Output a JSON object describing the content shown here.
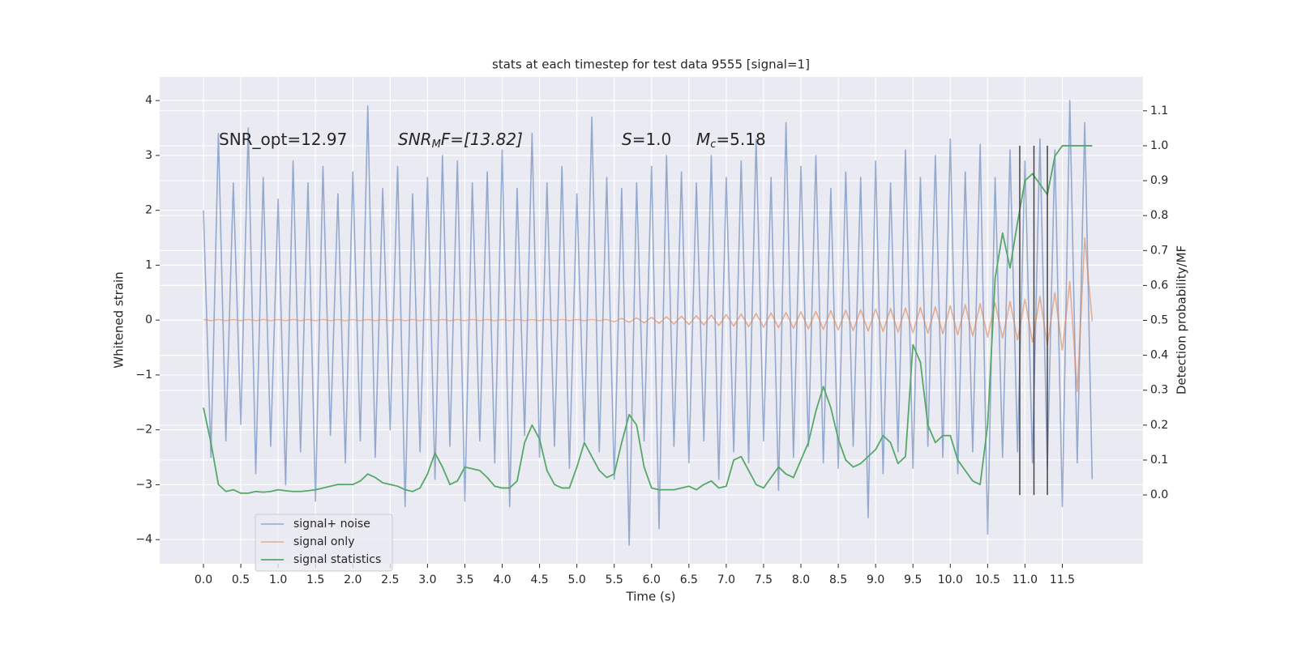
{
  "chart_data": {
    "type": "line",
    "title": "stats at each timestep for test data 9555 [signal=1]",
    "xlabel": "Time (s)",
    "ylabel": "Whitened strain",
    "y2label": "Detection probability/MF",
    "annotations": [
      [
        "SNR_opt=12.97"
      ],
      [
        "SNR",
        "M",
        "F=[13.82]"
      ],
      [
        "S",
        "=1.0"
      ],
      [
        "M",
        "c",
        "=5.18"
      ]
    ],
    "xlim": [
      -0.586,
      12.58
    ],
    "ylim": [
      -4.44,
      4.43
    ],
    "y2lim": [
      -0.197,
      1.197
    ],
    "xticks": [
      {
        "value": 0,
        "label": "0.0"
      },
      0.5,
      {
        "value": 1,
        "label": "1.0"
      },
      1.5,
      {
        "value": 2,
        "label": "2.0"
      },
      2.5,
      {
        "value": 3,
        "label": "3.0"
      },
      3.5,
      {
        "value": 4,
        "label": "4.0"
      },
      4.5,
      {
        "value": 5,
        "label": "5.0"
      },
      5.5,
      {
        "value": 6,
        "label": "6.0"
      },
      6.5,
      {
        "value": 7,
        "label": "7.0"
      },
      7.5,
      {
        "value": 8,
        "label": "8.0"
      },
      8.5,
      {
        "value": 9,
        "label": "9.0"
      },
      9.5,
      {
        "value": 10,
        "label": "10.0"
      },
      10.5,
      {
        "value": 11,
        "label": "11.0"
      },
      11.5
    ],
    "yticks": [
      {
        "value": -4,
        "label": "−4"
      },
      {
        "value": -3,
        "label": "−3"
      },
      {
        "value": -2,
        "label": "−2"
      },
      {
        "value": -1,
        "label": "−1"
      },
      0,
      1,
      2,
      3,
      4
    ],
    "y2ticks": [
      {
        "value": 0,
        "label": "0.0"
      },
      0.1,
      0.2,
      0.3,
      0.4,
      0.5,
      0.6,
      0.7,
      0.8,
      0.9,
      {
        "value": 1,
        "label": "1.0"
      },
      1.1
    ],
    "grid": true,
    "legend": "lower left",
    "x": [
      0,
      0.1,
      0.2,
      0.3,
      0.4,
      0.5,
      0.6,
      0.7,
      0.8,
      0.9,
      1,
      1.1,
      1.2,
      1.3,
      1.4,
      1.5,
      1.6,
      1.7,
      1.8,
      1.9,
      2,
      2.1,
      2.2,
      2.3,
      2.4,
      2.5,
      2.6,
      2.7,
      2.8,
      2.9,
      3,
      3.1,
      3.2,
      3.3,
      3.4,
      3.5,
      3.6,
      3.7,
      3.8,
      3.9,
      4,
      4.1,
      4.2,
      4.3,
      4.4,
      4.5,
      4.6,
      4.7,
      4.8,
      4.9,
      5,
      5.1,
      5.2,
      5.3,
      5.4,
      5.5,
      5.6,
      5.7,
      5.8,
      5.9,
      6,
      6.1,
      6.2,
      6.3,
      6.4,
      6.5,
      6.6,
      6.7,
      6.8,
      6.9,
      7,
      7.1,
      7.2,
      7.3,
      7.4,
      7.5,
      7.6,
      7.7,
      7.8,
      7.9,
      8,
      8.1,
      8.2,
      8.3,
      8.4,
      8.5,
      8.6,
      8.7,
      8.8,
      8.9,
      9,
      9.1,
      9.2,
      9.3,
      9.4,
      9.5,
      9.6,
      9.7,
      9.8,
      9.9,
      10,
      10.1,
      10.2,
      10.3,
      10.4,
      10.5,
      10.6,
      10.7,
      10.8,
      10.9,
      11,
      11.1,
      11.2,
      11.3,
      11.4,
      11.5,
      11.6,
      11.7,
      11.8,
      11.9
    ],
    "series": [
      {
        "name": "signal+ noise",
        "color": "#4c72b0",
        "values": [
          2.0,
          -2.5,
          3.4,
          -2.2,
          2.5,
          -1.9,
          3.5,
          -2.8,
          2.6,
          -2.3,
          2.2,
          -3.0,
          2.9,
          -2.4,
          2.5,
          -3.3,
          2.8,
          -2.1,
          2.3,
          -2.6,
          2.7,
          -2.2,
          3.9,
          -2.5,
          2.4,
          -2.0,
          2.8,
          -3.4,
          2.3,
          -2.4,
          2.6,
          -2.9,
          3.0,
          -2.3,
          2.9,
          -3.3,
          2.5,
          -2.2,
          2.7,
          -2.6,
          3.1,
          -3.4,
          2.4,
          -2.1,
          3.4,
          -2.5,
          2.5,
          -2.3,
          2.8,
          -2.7,
          2.3,
          -2.2,
          3.7,
          -2.4,
          2.6,
          -2.9,
          2.4,
          -4.1,
          2.5,
          -2.2,
          2.8,
          -3.8,
          3.0,
          -2.3,
          2.7,
          -2.6,
          2.5,
          -2.2,
          3.0,
          -2.9,
          2.6,
          -2.4,
          2.9,
          -2.6,
          3.3,
          -2.2,
          2.6,
          -3.1,
          3.6,
          -2.5,
          2.8,
          -2.3,
          3.0,
          -2.6,
          2.4,
          -2.7,
          2.7,
          -2.3,
          2.6,
          -3.6,
          2.9,
          -2.8,
          2.5,
          -2.4,
          3.1,
          -2.7,
          2.6,
          -2.3,
          3.0,
          -2.5,
          3.3,
          -2.8,
          2.7,
          -2.4,
          3.2,
          -3.9,
          2.6,
          -2.5,
          3.1,
          -2.4,
          2.9,
          -2.6,
          3.3,
          -2.7,
          3.1,
          -3.4,
          4.0,
          -2.6,
          3.6,
          -2.9
        ]
      },
      {
        "name": "signal only",
        "color": "#dd8452",
        "values": [
          0.01,
          -0.01,
          0.01,
          -0.01,
          0.01,
          -0.01,
          0.01,
          -0.01,
          0.01,
          -0.01,
          0.01,
          -0.01,
          0.01,
          -0.01,
          0.01,
          -0.01,
          0.01,
          -0.01,
          0.01,
          -0.01,
          0.01,
          -0.01,
          0.01,
          -0.01,
          0.01,
          -0.01,
          0.01,
          -0.01,
          0.01,
          -0.01,
          0.01,
          -0.01,
          0.01,
          -0.01,
          0.01,
          -0.01,
          0.01,
          -0.01,
          0.01,
          -0.01,
          0.01,
          -0.01,
          0.01,
          -0.01,
          0.01,
          -0.01,
          0.01,
          -0.01,
          0.01,
          -0.01,
          0.01,
          -0.01,
          0.01,
          -0.01,
          0.01,
          -0.03,
          0.03,
          -0.04,
          0.04,
          -0.05,
          0.05,
          -0.06,
          0.06,
          -0.07,
          0.07,
          -0.08,
          0.08,
          -0.09,
          0.09,
          -0.1,
          0.1,
          -0.11,
          0.11,
          -0.12,
          0.12,
          -0.13,
          0.13,
          -0.14,
          0.14,
          -0.15,
          0.15,
          -0.16,
          0.16,
          -0.17,
          0.17,
          -0.18,
          0.18,
          -0.19,
          0.19,
          -0.2,
          0.2,
          -0.21,
          0.21,
          -0.22,
          0.22,
          -0.23,
          0.23,
          -0.24,
          0.24,
          -0.25,
          0.26,
          -0.27,
          0.28,
          -0.29,
          0.3,
          -0.31,
          0.32,
          -0.33,
          0.34,
          -0.36,
          0.38,
          -0.4,
          0.43,
          -0.46,
          0.5,
          -0.55,
          0.7,
          -1.3,
          1.5,
          -0.02
        ]
      },
      {
        "name": "signal statistics",
        "color": "#55a868",
        "axis": "y2",
        "values": [
          0.25,
          0.15,
          0.03,
          0.01,
          0.015,
          0.005,
          0.005,
          0.01,
          0.008,
          0.01,
          0.015,
          0.012,
          0.01,
          0.01,
          0.012,
          0.015,
          0.02,
          0.025,
          0.03,
          0.03,
          0.03,
          0.04,
          0.06,
          0.05,
          0.035,
          0.03,
          0.025,
          0.015,
          0.01,
          0.02,
          0.06,
          0.12,
          0.08,
          0.03,
          0.04,
          0.08,
          0.075,
          0.07,
          0.05,
          0.025,
          0.02,
          0.02,
          0.04,
          0.15,
          0.2,
          0.16,
          0.07,
          0.03,
          0.02,
          0.02,
          0.08,
          0.15,
          0.11,
          0.07,
          0.05,
          0.06,
          0.15,
          0.23,
          0.2,
          0.08,
          0.02,
          0.015,
          0.015,
          0.015,
          0.02,
          0.025,
          0.015,
          0.03,
          0.04,
          0.02,
          0.025,
          0.1,
          0.11,
          0.07,
          0.03,
          0.02,
          0.05,
          0.08,
          0.06,
          0.05,
          0.1,
          0.15,
          0.24,
          0.31,
          0.25,
          0.16,
          0.1,
          0.08,
          0.09,
          0.11,
          0.13,
          0.17,
          0.15,
          0.09,
          0.11,
          0.43,
          0.38,
          0.2,
          0.15,
          0.17,
          0.17,
          0.1,
          0.07,
          0.04,
          0.03,
          0.2,
          0.62,
          0.75,
          0.65,
          0.78,
          0.9,
          0.92,
          0.89,
          0.86,
          0.97,
          1.0,
          1.0,
          1.0,
          1.0,
          1.0
        ]
      }
    ],
    "vlines": {
      "x": [
        10.93,
        11.12,
        11.3
      ],
      "ymin": 0,
      "ymax": 1.0,
      "color": "#444444"
    }
  }
}
